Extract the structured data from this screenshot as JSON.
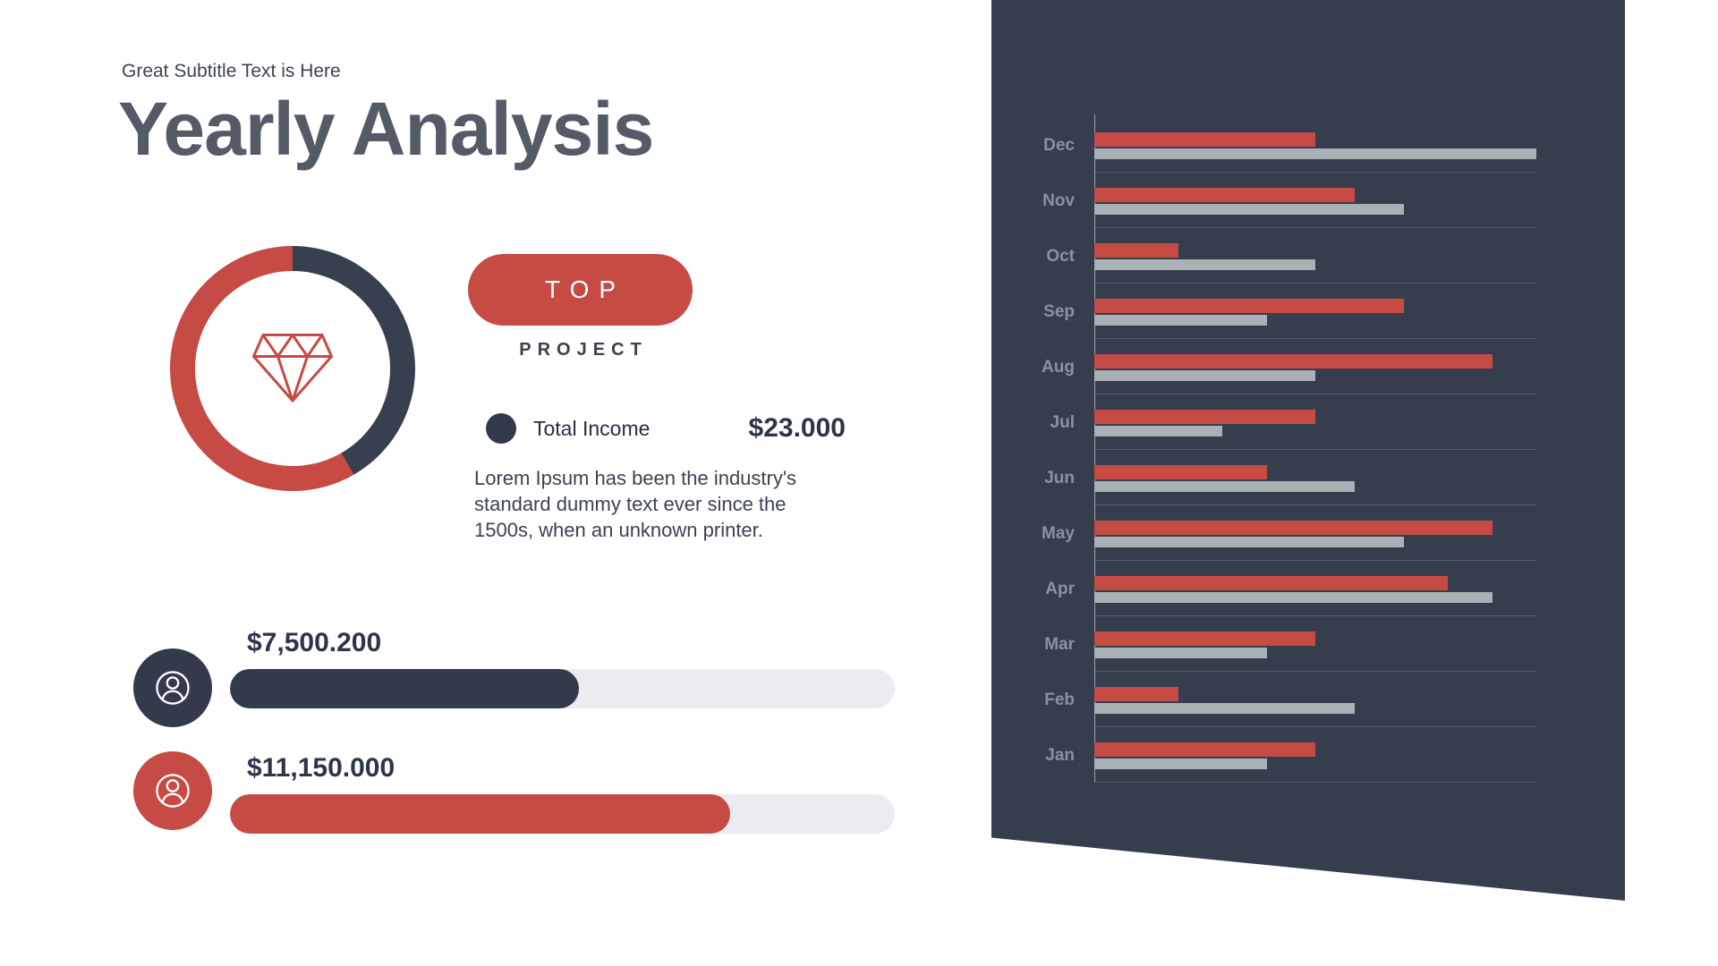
{
  "colors": {
    "red": "#c54b44",
    "dark": "#323a4c",
    "panel": "#363e4e",
    "gray_bar": "#a9b1b7",
    "track": "#ececf0"
  },
  "header": {
    "subtitle": "Great Subtitle Text is Here",
    "title": "Yearly Analysis"
  },
  "donut": {
    "segments": [
      {
        "name": "dark",
        "sweep_deg": 150,
        "color": "#38404f"
      },
      {
        "name": "red",
        "sweep_deg": 210,
        "color": "#c54b44"
      }
    ],
    "icon": "gem-icon"
  },
  "top_project": {
    "badge_label": "TOP",
    "caption": "PROJECT"
  },
  "income": {
    "label": "Total Income",
    "value": "$23.000",
    "description": "Lorem Ipsum has been the industry's standard dummy text ever since the 1500s, when an unknown printer."
  },
  "progress_bars": [
    {
      "label": "$7,500.200",
      "percent": 52.5,
      "color": "#323a4c"
    },
    {
      "label": "$11,150.000",
      "percent": 75.3,
      "color": "#c54b44"
    }
  ],
  "chart_data": {
    "type": "bar",
    "orientation": "horizontal",
    "title": "",
    "categories": [
      "Dec",
      "Nov",
      "Oct",
      "Sep",
      "Aug",
      "Jul",
      "Jun",
      "May",
      "Apr",
      "Mar",
      "Feb",
      "Jan"
    ],
    "series": [
      {
        "name": "red-series",
        "color": "#c54b44",
        "values": [
          50,
          59,
          19,
          70,
          90,
          50,
          39,
          90,
          80,
          50,
          19,
          50
        ]
      },
      {
        "name": "gray-series",
        "color": "#a9b1b7",
        "values": [
          100,
          70,
          50,
          39,
          50,
          29,
          59,
          70,
          90,
          39,
          59,
          39
        ]
      }
    ],
    "xlim": [
      0,
      100
    ],
    "legend": "none",
    "gridlines": "horizontal"
  }
}
